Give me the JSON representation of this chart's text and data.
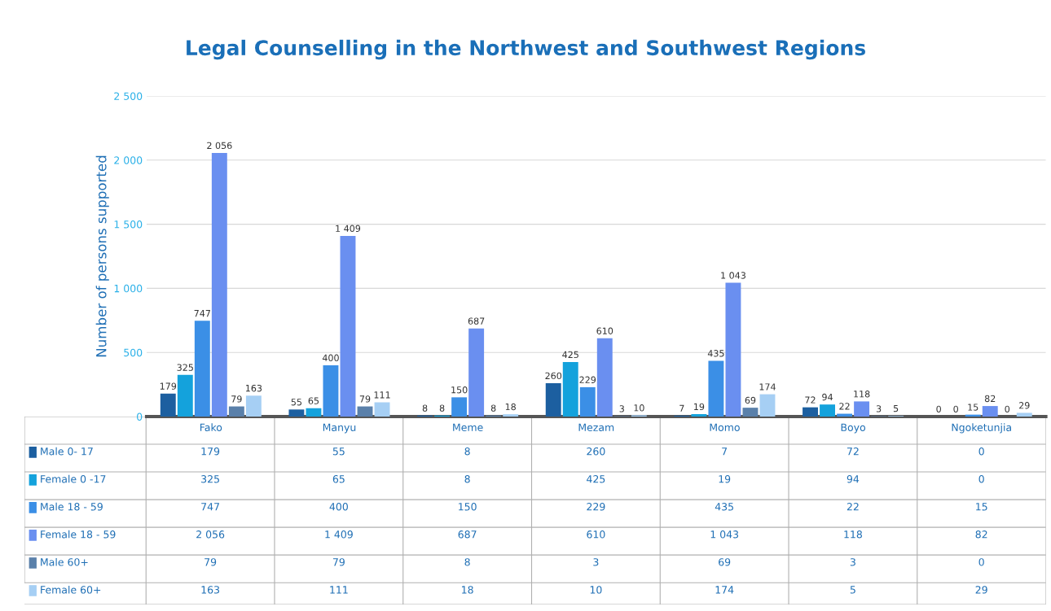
{
  "chart_data": {
    "type": "bar",
    "title": "Legal Counselling in the Northwest and Southwest Regions",
    "ylabel": "Number of persons supported",
    "categories": [
      "Fako",
      "Manyu",
      "Meme",
      "Mezam",
      "Momo",
      "Boyo",
      "Ngoketunjia"
    ],
    "series": [
      {
        "name": "Male 0- 17",
        "color": "#1c5fa0",
        "values": [
          179,
          55,
          8,
          260,
          7,
          72,
          0
        ],
        "value_labels": [
          "179",
          "55",
          "8",
          "260",
          "7",
          "72",
          "0"
        ]
      },
      {
        "name": "Female 0 -17",
        "color": "#14a2dc",
        "values": [
          325,
          65,
          8,
          425,
          19,
          94,
          0
        ],
        "value_labels": [
          "325",
          "65",
          "8",
          "425",
          "19",
          "94",
          "0"
        ]
      },
      {
        "name": "Male 18 - 59",
        "color": "#3b8fe6",
        "values": [
          747,
          400,
          150,
          229,
          435,
          22,
          15
        ],
        "value_labels": [
          "747",
          "400",
          "150",
          "229",
          "435",
          "22",
          "15"
        ]
      },
      {
        "name": "Female 18 - 59",
        "color": "#6a8ff0",
        "values": [
          2056,
          1409,
          687,
          610,
          1043,
          118,
          82
        ],
        "value_labels": [
          "2 056",
          "1 409",
          "687",
          "610",
          "1 043",
          "118",
          "82"
        ]
      },
      {
        "name": "Male 60+",
        "color": "#5a80aa",
        "values": [
          79,
          79,
          8,
          3,
          69,
          3,
          0
        ],
        "value_labels": [
          "79",
          "79",
          "8",
          "3",
          "69",
          "3",
          "0"
        ]
      },
      {
        "name": "Female 60+",
        "color": "#a6cff4",
        "values": [
          163,
          111,
          18,
          10,
          174,
          5,
          29
        ],
        "value_labels": [
          "163",
          "111",
          "18",
          "10",
          "174",
          "5",
          "29"
        ]
      }
    ],
    "ylim": [
      0,
      2500
    ],
    "yticks": [
      {
        "value": 0,
        "label": "0"
      },
      {
        "value": 500,
        "label": "500"
      },
      {
        "value": 1000,
        "label": "1 000"
      },
      {
        "value": 1500,
        "label": "1 500"
      },
      {
        "value": 2000,
        "label": "2 000"
      },
      {
        "value": 2500,
        "label": "2 500"
      }
    ],
    "grid": "y",
    "legend": "bottom"
  }
}
